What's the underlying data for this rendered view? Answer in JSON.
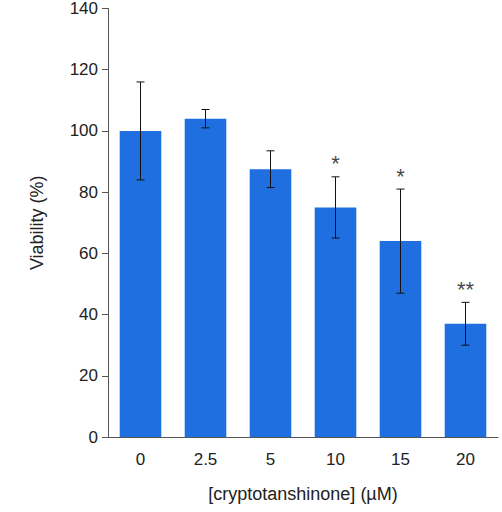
{
  "chart_data": {
    "type": "bar",
    "x_label": "[cryptotanshinone] (µM)",
    "y_label": "Viability (%)",
    "categories": [
      "0",
      "2.5",
      "5",
      "10",
      "15",
      "20"
    ],
    "values": [
      100,
      104,
      87.5,
      75,
      64,
      37
    ],
    "errors": [
      16,
      3,
      6,
      10,
      17,
      7
    ],
    "annotations": [
      {
        "category": "10",
        "text": "*"
      },
      {
        "category": "15",
        "text": "*"
      },
      {
        "category": "20",
        "text": "**"
      }
    ],
    "color": "#1f6fe0",
    "ylim": [
      0,
      140
    ],
    "yticks": [
      0,
      20,
      40,
      60,
      80,
      100,
      120,
      140
    ],
    "grid": false
  }
}
